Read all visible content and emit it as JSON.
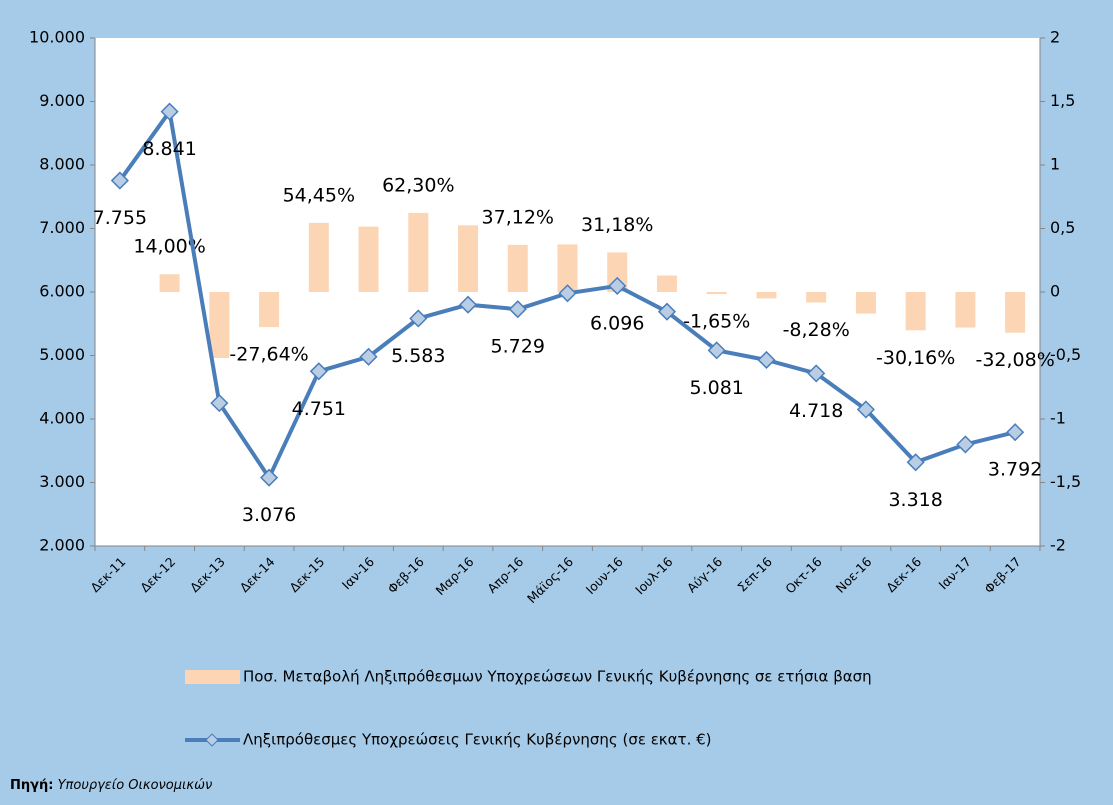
{
  "chart_data": {
    "type": "combo",
    "categories": [
      "Δεκ-11",
      "Δεκ-12",
      "Δεκ-13",
      "Δεκ-14",
      "Δεκ-15",
      "Ιαν-16",
      "Φεβ-16",
      "Μαρ-16",
      "Απρ-16",
      "Μάϊος-16",
      "Ιουν-16",
      "Ιουλ-16",
      "Αύγ-16",
      "Σεπ-16",
      "Οκτ-16",
      "Νοε-16",
      "Δεκ-16",
      "Ιαν-17",
      "Φεβ-17"
    ],
    "series": [
      {
        "name": "Ποσ. Μεταβολή Ληξιπρόθεσμων Υποχρεώσεων Γενικής Κυβέρνησης σε ετήσια βαση",
        "type": "bar",
        "axis": "y2",
        "color": "#fcd5b4",
        "values": [
          null,
          0.14,
          -0.52,
          -0.2764,
          0.5445,
          0.515,
          0.623,
          0.525,
          0.3712,
          0.375,
          0.3118,
          0.13,
          -0.0165,
          -0.05,
          -0.0828,
          -0.17,
          -0.3016,
          -0.28,
          -0.3208
        ],
        "value_labels": [
          null,
          "14,00%",
          null,
          "-27,64%",
          "54,45%",
          null,
          "62,30%",
          null,
          "37,12%",
          null,
          "31,18%",
          null,
          "-1,65%",
          null,
          "-8,28%",
          null,
          "-30,16%",
          null,
          "-32,08%"
        ]
      },
      {
        "name": "Ληξιπρόθεσμες Υποχρεώσεις Γενικής Κυβέρνησης (σε εκατ. €)",
        "type": "line",
        "axis": "y",
        "color": "#4a7ebb",
        "values": [
          7755,
          8841,
          4250,
          3076,
          4751,
          4980,
          5583,
          5800,
          5729,
          5980,
          6096,
          5690,
          5081,
          4930,
          4718,
          4150,
          3318,
          3600,
          3792
        ],
        "value_labels": [
          "7.755",
          "8.841",
          null,
          "3.076",
          "4.751",
          null,
          "5.583",
          null,
          "5.729",
          null,
          "6.096",
          null,
          "5.081",
          null,
          "4.718",
          null,
          "3.318",
          null,
          "3.792"
        ]
      }
    ],
    "ylim": [
      2000,
      10000
    ],
    "yticks": [
      {
        "value": 2000,
        "label": "2.000"
      },
      {
        "value": 3000,
        "label": "3.000"
      },
      {
        "value": 4000,
        "label": "4.000"
      },
      {
        "value": 5000,
        "label": "5.000"
      },
      {
        "value": 6000,
        "label": "6.000"
      },
      {
        "value": 7000,
        "label": "7.000"
      },
      {
        "value": 8000,
        "label": "8.000"
      },
      {
        "value": 9000,
        "label": "9.000"
      },
      {
        "value": 10000,
        "label": "10.000"
      }
    ],
    "y2lim": [
      -2,
      2
    ],
    "y2ticks": [
      -2,
      {
        "value": -1.5,
        "label": "-1,5"
      },
      -1,
      {
        "value": -0.5,
        "label": "-0,5"
      },
      0,
      {
        "value": 0.5,
        "label": "0,5"
      },
      1,
      {
        "value": 1.5,
        "label": "1,5"
      },
      2
    ],
    "source": {
      "label": "Πηγή:",
      "text": "Υπουργείο Οικονομικών"
    }
  }
}
